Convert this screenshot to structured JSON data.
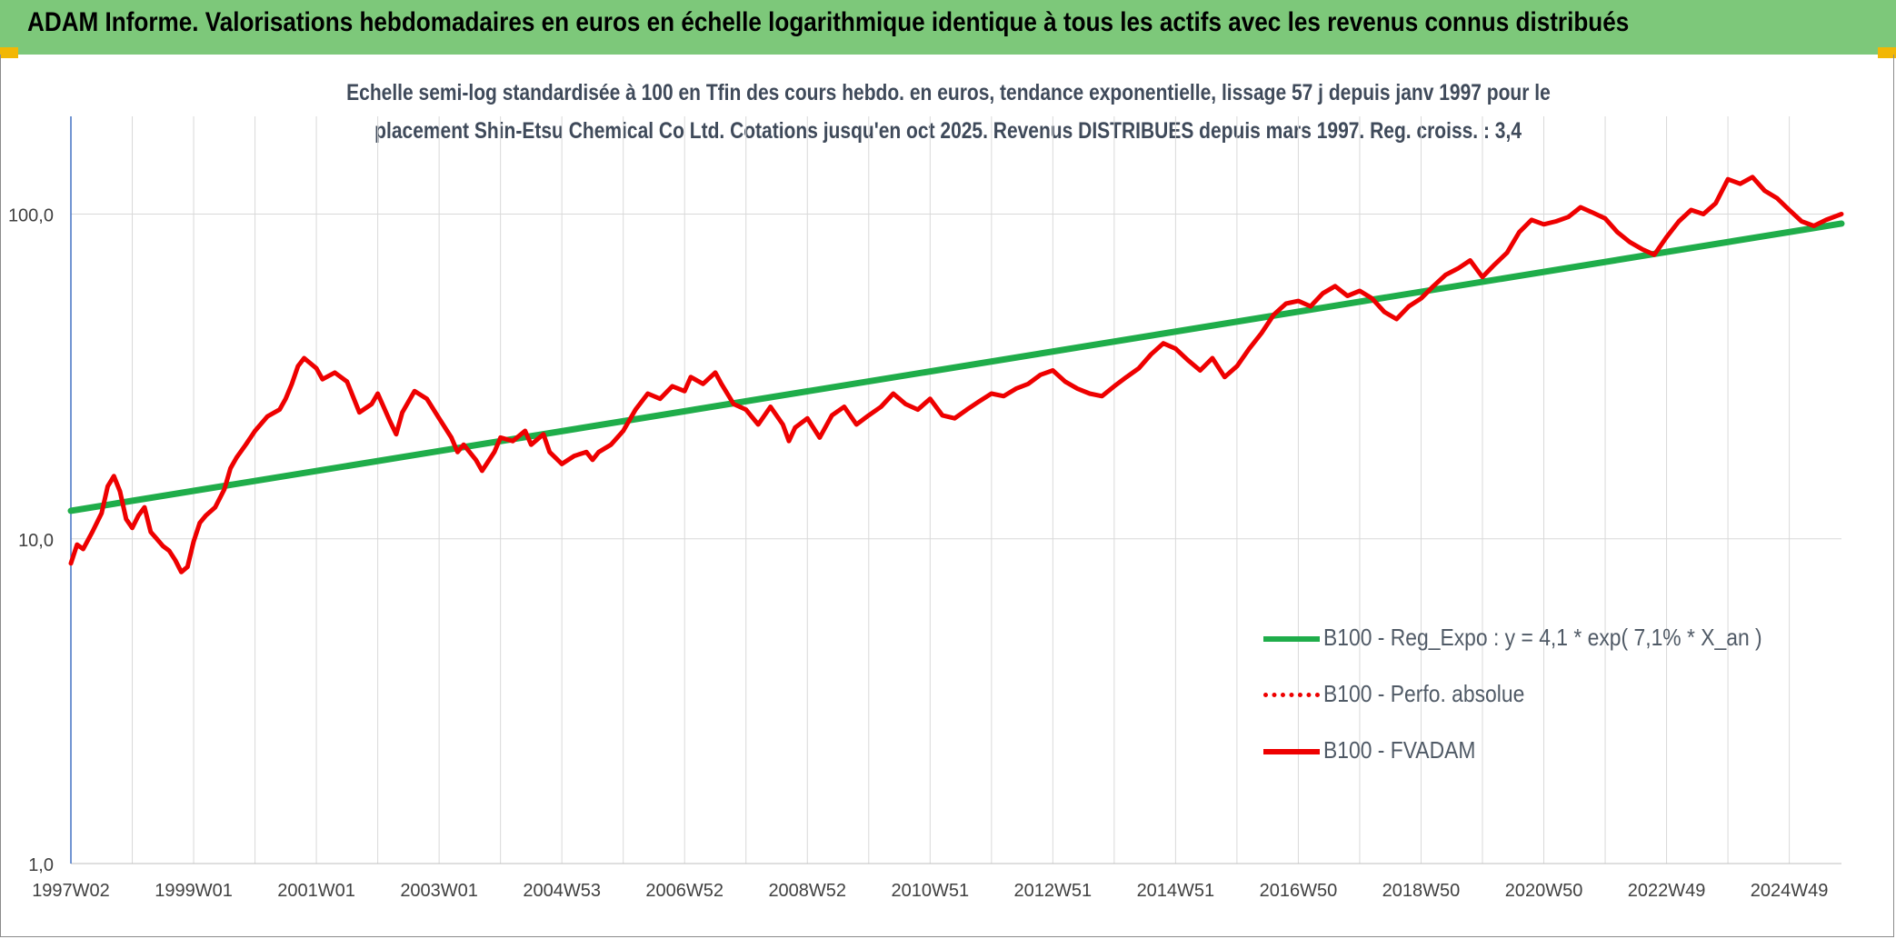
{
  "header": {
    "title": "ADAM Informe. Valorisations hebdomadaires en euros en échelle logarithmique identique à tous les actifs avec les revenus connus distribués"
  },
  "colors": {
    "banner": "#7dc87a",
    "corner_marks": "#f2b705",
    "reg_line": "#1fad4a",
    "fvadam_line": "#ee0000",
    "grid": "#d9d9d9",
    "y_axis": "#4472c4"
  },
  "chart_data": {
    "type": "line",
    "title_lines": [
      "Echelle semi-log standardisée à 100 en Tfin des cours hebdo. en euros, tendance exponentielle, lissage 57 j depuis janv 1997 pour le",
      "placement Shin-Etsu Chemical Co Ltd. Cotations jusqu'en oct 2025. Revenus DISTRIBUES depuis mars 1997. Reg. croiss. : 3,4"
    ],
    "y_scale": "log",
    "ylim": [
      1,
      200
    ],
    "yticks": [
      {
        "value": 1,
        "label": "1,0"
      },
      {
        "value": 10,
        "label": "10,0"
      },
      {
        "value": 100,
        "label": "100,0"
      }
    ],
    "xlim": [
      1997.0,
      2025.85
    ],
    "xticks": [
      {
        "value": 1997.0,
        "label": "1997W02"
      },
      {
        "value": 1999.0,
        "label": "1999W01"
      },
      {
        "value": 2001.0,
        "label": "2001W01"
      },
      {
        "value": 2003.0,
        "label": "2003W01"
      },
      {
        "value": 2005.0,
        "label": "2004W53"
      },
      {
        "value": 2007.0,
        "label": "2006W52"
      },
      {
        "value": 2009.0,
        "label": "2008W52"
      },
      {
        "value": 2011.0,
        "label": "2010W51"
      },
      {
        "value": 2013.0,
        "label": "2012W51"
      },
      {
        "value": 2015.0,
        "label": "2014W51"
      },
      {
        "value": 2017.0,
        "label": "2016W50"
      },
      {
        "value": 2019.0,
        "label": "2018W50"
      },
      {
        "value": 2021.0,
        "label": "2020W50"
      },
      {
        "value": 2023.0,
        "label": "2022W49"
      },
      {
        "value": 2025.0,
        "label": "2024W49"
      }
    ],
    "grid": "vertical and horizontal",
    "legend_position": "bottom-right",
    "series": [
      {
        "name": "B100 - Reg_Expo : y = 4,1 * exp( 7,1% *  X_an )",
        "style": "solid-thick",
        "x": [
          1997.0,
          2025.85
        ],
        "y": [
          12.2,
          93.5
        ]
      },
      {
        "name": "B100 - Perfo. absolue",
        "style": "dotted",
        "x": [],
        "y": []
      },
      {
        "name": "B100 - FVADAM",
        "style": "solid",
        "x": [
          1997.0,
          1997.1,
          1997.2,
          1997.35,
          1997.5,
          1997.6,
          1997.7,
          1997.8,
          1997.9,
          1998.0,
          1998.1,
          1998.2,
          1998.3,
          1998.4,
          1998.5,
          1998.6,
          1998.7,
          1998.8,
          1998.9,
          1999.0,
          1999.1,
          1999.2,
          1999.35,
          1999.5,
          1999.6,
          1999.7,
          1999.85,
          2000.0,
          2000.2,
          2000.4,
          2000.5,
          2000.6,
          2000.7,
          2000.8,
          2001.0,
          2001.1,
          2001.3,
          2001.5,
          2001.7,
          2001.9,
          2002.0,
          2002.2,
          2002.3,
          2002.4,
          2002.6,
          2002.8,
          2003.0,
          2003.2,
          2003.3,
          2003.4,
          2003.6,
          2003.7,
          2003.9,
          2004.0,
          2004.2,
          2004.4,
          2004.5,
          2004.7,
          2004.8,
          2005.0,
          2005.2,
          2005.4,
          2005.5,
          2005.6,
          2005.8,
          2006.0,
          2006.2,
          2006.4,
          2006.6,
          2006.8,
          2007.0,
          2007.1,
          2007.3,
          2007.5,
          2007.6,
          2007.8,
          2008.0,
          2008.2,
          2008.4,
          2008.6,
          2008.7,
          2008.8,
          2009.0,
          2009.2,
          2009.4,
          2009.6,
          2009.8,
          2010.0,
          2010.2,
          2010.4,
          2010.6,
          2010.8,
          2011.0,
          2011.2,
          2011.4,
          2011.6,
          2011.8,
          2012.0,
          2012.2,
          2012.4,
          2012.6,
          2012.8,
          2013.0,
          2013.2,
          2013.4,
          2013.6,
          2013.8,
          2014.0,
          2014.2,
          2014.4,
          2014.6,
          2014.8,
          2015.0,
          2015.2,
          2015.4,
          2015.6,
          2015.8,
          2016.0,
          2016.2,
          2016.4,
          2016.6,
          2016.8,
          2017.0,
          2017.2,
          2017.4,
          2017.6,
          2017.8,
          2018.0,
          2018.2,
          2018.4,
          2018.6,
          2018.8,
          2019.0,
          2019.2,
          2019.4,
          2019.6,
          2019.8,
          2020.0,
          2020.2,
          2020.4,
          2020.6,
          2020.8,
          2021.0,
          2021.2,
          2021.4,
          2021.6,
          2021.8,
          2022.0,
          2022.2,
          2022.4,
          2022.6,
          2022.8,
          2023.0,
          2023.2,
          2023.4,
          2023.6,
          2023.8,
          2024.0,
          2024.2,
          2024.4,
          2024.6,
          2024.8,
          2025.0,
          2025.2,
          2025.4,
          2025.6,
          2025.85
        ],
        "y": [
          8.4,
          9.6,
          9.3,
          10.5,
          12.0,
          14.5,
          15.6,
          14.0,
          11.5,
          10.8,
          11.8,
          12.5,
          10.5,
          10.0,
          9.5,
          9.2,
          8.6,
          7.9,
          8.2,
          9.8,
          11.2,
          11.8,
          12.5,
          14.2,
          16.5,
          17.8,
          19.5,
          21.5,
          23.8,
          25.0,
          27.0,
          30.0,
          34.0,
          36.0,
          33.5,
          31.0,
          32.5,
          30.5,
          24.5,
          26.0,
          28.0,
          23.0,
          21.0,
          24.5,
          28.5,
          27.0,
          23.5,
          20.5,
          18.5,
          19.5,
          17.5,
          16.2,
          18.5,
          20.5,
          20.0,
          21.5,
          19.5,
          21.0,
          18.5,
          17.0,
          18.0,
          18.5,
          17.5,
          18.5,
          19.5,
          21.5,
          25.0,
          28.0,
          27.0,
          29.5,
          28.5,
          31.5,
          30.0,
          32.5,
          30.0,
          26.0,
          25.0,
          22.5,
          25.5,
          22.5,
          20.0,
          22.0,
          23.5,
          20.5,
          24.0,
          25.5,
          22.5,
          24.0,
          25.5,
          28.0,
          26.0,
          25.0,
          27.0,
          24.0,
          23.5,
          25.0,
          26.5,
          28.0,
          27.5,
          29.0,
          30.0,
          32.0,
          33.0,
          30.5,
          29.0,
          28.0,
          27.5,
          29.5,
          31.5,
          33.5,
          37.0,
          40.0,
          38.5,
          35.5,
          33.0,
          36.0,
          31.5,
          34.0,
          38.5,
          43.0,
          49.0,
          53.0,
          54.0,
          52.0,
          57.0,
          60.0,
          56.0,
          58.0,
          55.0,
          50.0,
          47.5,
          52.0,
          55.0,
          60.0,
          65.0,
          68.0,
          72.0,
          64.0,
          70.0,
          76.0,
          88.0,
          96.0,
          93.0,
          95.0,
          98.0,
          105.0,
          101.0,
          97.0,
          88.0,
          82.0,
          78.0,
          75.0,
          85.0,
          95.0,
          103.0,
          100.0,
          108.0,
          128.0,
          124.0,
          130.0,
          118.0,
          112.0,
          103.0,
          95.0,
          92.0,
          96.0,
          100.0
        ]
      }
    ]
  }
}
